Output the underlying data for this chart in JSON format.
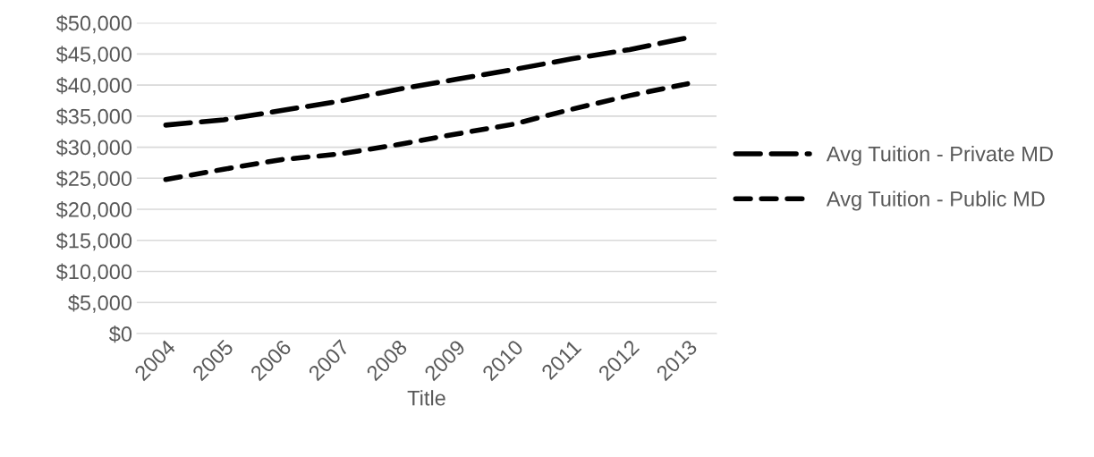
{
  "chart_data": {
    "type": "line",
    "xlabel": "Title",
    "categories": [
      "2004",
      "2005",
      "2006",
      "2007",
      "2008",
      "2009",
      "2010",
      "2011",
      "2012",
      "2013"
    ],
    "series": [
      {
        "name": "Avg Tuition - Private MD",
        "color": "#000000",
        "line_style": "dashed",
        "values": [
          33550,
          34400,
          35900,
          37400,
          39300,
          40900,
          42500,
          44200,
          45700,
          47600
        ]
      },
      {
        "name": "Avg Tuition - Public MD",
        "color": "#000000",
        "line_style": "dotted",
        "values": [
          24800,
          26450,
          28000,
          28900,
          30400,
          32100,
          33700,
          36100,
          38300,
          40200
        ]
      }
    ],
    "ylim": [
      0,
      50000
    ],
    "yticks": [
      {
        "value": 0,
        "label": "$0"
      },
      {
        "value": 5000,
        "label": "$5,000"
      },
      {
        "value": 10000,
        "label": "$10,000"
      },
      {
        "value": 15000,
        "label": "$15,000"
      },
      {
        "value": 20000,
        "label": "$20,000"
      },
      {
        "value": 25000,
        "label": "$25,000"
      },
      {
        "value": 30000,
        "label": "$30,000"
      },
      {
        "value": 35000,
        "label": "$35,000"
      },
      {
        "value": 40000,
        "label": "$40,000"
      },
      {
        "value": 45000,
        "label": "$45,000"
      },
      {
        "value": 50000,
        "label": "$50,000"
      }
    ],
    "grid": "y",
    "legend": "right",
    "marker": "none"
  }
}
